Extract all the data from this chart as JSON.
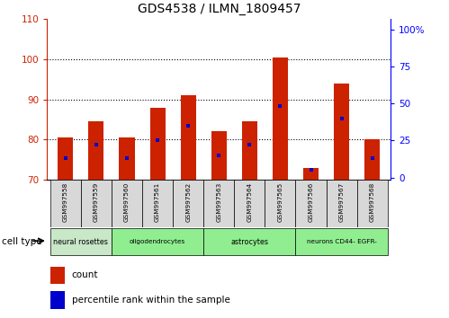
{
  "title": "GDS4538 / ILMN_1809457",
  "samples": [
    "GSM997558",
    "GSM997559",
    "GSM997560",
    "GSM997561",
    "GSM997562",
    "GSM997563",
    "GSM997564",
    "GSM997565",
    "GSM997566",
    "GSM997567",
    "GSM997568"
  ],
  "count_values": [
    80.5,
    84.5,
    80.5,
    88.0,
    91.0,
    82.0,
    84.5,
    100.5,
    73.0,
    94.0,
    80.0
  ],
  "percentile_right": [
    13,
    22,
    13,
    25,
    35,
    15,
    22,
    48,
    5,
    40,
    13
  ],
  "ylim_left": [
    70,
    110
  ],
  "ylim_right": [
    -1.5,
    107
  ],
  "yticks_left": [
    70,
    80,
    90,
    100,
    110
  ],
  "yticks_right": [
    0,
    25,
    50,
    75,
    100
  ],
  "yticklabels_right": [
    "0",
    "25",
    "50",
    "75",
    "100%"
  ],
  "bar_bottom": 70,
  "red_color": "#cc2200",
  "blue_color": "#0000cc",
  "bar_width": 0.5,
  "count_label": "count",
  "percentile_label": "percentile rank within the sample",
  "cell_type_label": "cell type",
  "cell_groups": [
    {
      "start": 0,
      "end": 1,
      "label": "neural rosettes",
      "color": "#c8e8c8"
    },
    {
      "start": 2,
      "end": 4,
      "label": "oligodendrocytes",
      "color": "#90ee90"
    },
    {
      "start": 5,
      "end": 7,
      "label": "astrocytes",
      "color": "#90ee90"
    },
    {
      "start": 8,
      "end": 10,
      "label": "neurons CD44- EGFR-",
      "color": "#90ee90"
    }
  ]
}
